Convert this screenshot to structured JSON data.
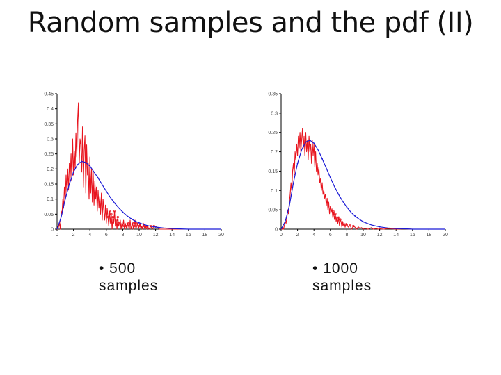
{
  "slide": {
    "title": "Random samples and the pdf (II)"
  },
  "captions": [
    {
      "line1": "• 500",
      "line2": "samples"
    },
    {
      "line1": "• 1000",
      "line2": "samples"
    }
  ],
  "colors": {
    "samples": "#e8141e",
    "pdf": "#1a1ad6",
    "axis": "#000000"
  },
  "chart_data": [
    {
      "type": "line",
      "title": "",
      "xlabel": "",
      "ylabel": "",
      "xlim": [
        0,
        20
      ],
      "ylim": [
        0,
        0.45
      ],
      "grid": false,
      "xticks": [
        "0",
        "2",
        "4",
        "6",
        "8",
        "10",
        "12",
        "14",
        "16",
        "18",
        "20"
      ],
      "yticks": [
        "0",
        "0.05",
        "0.1",
        "0.15",
        "0.2",
        "0.25",
        "0.3",
        "0.35",
        "0.4",
        "0.45"
      ],
      "series": [
        {
          "role": "samples",
          "x": [
            0,
            0.1,
            0.2,
            0.3,
            0.4,
            0.5,
            0.6,
            0.7,
            0.8,
            0.9,
            1,
            1.1,
            1.2,
            1.3,
            1.4,
            1.5,
            1.6,
            1.7,
            1.8,
            1.9,
            2,
            2.1,
            2.2,
            2.3,
            2.4,
            2.5,
            2.6,
            2.7,
            2.8,
            2.9,
            3,
            3.1,
            3.2,
            3.3,
            3.4,
            3.5,
            3.6,
            3.7,
            3.8,
            3.9,
            4,
            4.1,
            4.2,
            4.3,
            4.4,
            4.5,
            4.6,
            4.7,
            4.8,
            4.9,
            5,
            5.1,
            5.2,
            5.3,
            5.4,
            5.5,
            5.6,
            5.7,
            5.8,
            5.9,
            6,
            6.1,
            6.2,
            6.3,
            6.4,
            6.5,
            6.6,
            6.7,
            6.8,
            6.9,
            7,
            7.1,
            7.2,
            7.3,
            7.4,
            7.5,
            7.6,
            7.7,
            7.8,
            7.9,
            8,
            8.1,
            8.2,
            8.3,
            8.4,
            8.5,
            8.6,
            8.7,
            8.8,
            8.9,
            9,
            9.1,
            9.2,
            9.3,
            9.4,
            9.5,
            9.6,
            9.7,
            9.8,
            9.9,
            10,
            10.1,
            10.2,
            10.3,
            10.4,
            10.5,
            10.6,
            10.7,
            10.8,
            10.9,
            11,
            11.2,
            11.4,
            11.6,
            11.8,
            12,
            12.5,
            13,
            14,
            15,
            16,
            17,
            18,
            19,
            20
          ],
          "y": [
            0,
            0,
            0.01,
            0.02,
            0,
            0.06,
            0.05,
            0.1,
            0.07,
            0.14,
            0.1,
            0.18,
            0.12,
            0.2,
            0.13,
            0.22,
            0.17,
            0.25,
            0.16,
            0.3,
            0.18,
            0.26,
            0.2,
            0.32,
            0.24,
            0.36,
            0.42,
            0.22,
            0.3,
            0.28,
            0.19,
            0.34,
            0.14,
            0.26,
            0.31,
            0.12,
            0.28,
            0.18,
            0.22,
            0.1,
            0.24,
            0.12,
            0.2,
            0.09,
            0.19,
            0.08,
            0.16,
            0.1,
            0.14,
            0.06,
            0.13,
            0.07,
            0.11,
            0.05,
            0.12,
            0.03,
            0.1,
            0.06,
            0.03,
            0.08,
            0.02,
            0.07,
            0.04,
            0.01,
            0.06,
            0.02,
            0.05,
            0,
            0.04,
            0.02,
            0.06,
            0.01,
            0.03,
            0,
            0.04,
            0.01,
            0.02,
            0.03,
            0,
            0.02,
            0.01,
            0.03,
            0,
            0.02,
            0.01,
            0,
            0.02,
            0.01,
            0,
            0.03,
            0,
            0.01,
            0.02,
            0,
            0.01,
            0.03,
            0,
            0.01,
            0.02,
            0,
            0.01,
            0.02,
            0,
            0.01,
            0,
            0.02,
            0.01,
            0,
            0.01,
            0,
            0.01,
            0,
            0.01,
            0,
            0.01,
            0.01,
            0,
            0,
            0,
            0,
            0,
            0,
            0,
            0,
            0
          ]
        },
        {
          "role": "pdf",
          "x": [
            0,
            0.5,
            1,
            1.5,
            2,
            2.5,
            3,
            3.5,
            4,
            4.5,
            5,
            5.5,
            6,
            6.5,
            7,
            7.5,
            8,
            8.5,
            9,
            9.5,
            10,
            11,
            12,
            13,
            14,
            15,
            16,
            17,
            18,
            19,
            20
          ],
          "y": [
            0,
            0.04,
            0.1,
            0.15,
            0.19,
            0.215,
            0.225,
            0.222,
            0.21,
            0.19,
            0.17,
            0.148,
            0.126,
            0.105,
            0.087,
            0.071,
            0.057,
            0.045,
            0.035,
            0.027,
            0.021,
            0.012,
            0.007,
            0.004,
            0.002,
            0.001,
            0,
            0,
            0,
            0,
            0
          ]
        }
      ]
    },
    {
      "type": "line",
      "title": "",
      "xlabel": "",
      "ylabel": "",
      "xlim": [
        0,
        20
      ],
      "ylim": [
        0,
        0.35
      ],
      "grid": false,
      "xticks": [
        "0",
        "2",
        "4",
        "6",
        "8",
        "10",
        "12",
        "14",
        "16",
        "18",
        "20"
      ],
      "yticks": [
        "0",
        "0.05",
        "0.1",
        "0.15",
        "0.2",
        "0.25",
        "0.3",
        "0.35"
      ],
      "series": [
        {
          "role": "samples",
          "x": [
            0,
            0.1,
            0.2,
            0.3,
            0.4,
            0.5,
            0.6,
            0.7,
            0.8,
            0.9,
            1,
            1.1,
            1.2,
            1.3,
            1.4,
            1.5,
            1.6,
            1.7,
            1.8,
            1.9,
            2,
            2.1,
            2.2,
            2.3,
            2.4,
            2.5,
            2.6,
            2.7,
            2.8,
            2.9,
            3,
            3.1,
            3.2,
            3.3,
            3.4,
            3.5,
            3.6,
            3.7,
            3.8,
            3.9,
            4,
            4.1,
            4.2,
            4.3,
            4.4,
            4.5,
            4.6,
            4.7,
            4.8,
            4.9,
            5,
            5.1,
            5.2,
            5.3,
            5.4,
            5.5,
            5.6,
            5.7,
            5.8,
            5.9,
            6,
            6.1,
            6.2,
            6.3,
            6.4,
            6.5,
            6.6,
            6.7,
            6.8,
            6.9,
            7,
            7.1,
            7.2,
            7.3,
            7.4,
            7.5,
            7.6,
            7.7,
            7.8,
            7.9,
            8,
            8.2,
            8.4,
            8.6,
            8.8,
            9,
            9.2,
            9.4,
            9.6,
            9.8,
            10,
            10.2,
            10.4,
            10.6,
            10.8,
            11,
            11.2,
            11.4,
            11.6,
            11.8,
            12,
            12.5,
            13,
            14,
            15,
            16,
            17,
            18,
            19,
            20
          ],
          "y": [
            0,
            0,
            0.005,
            0,
            0.01,
            0.02,
            0.015,
            0.03,
            0.05,
            0.04,
            0.07,
            0.09,
            0.12,
            0.1,
            0.15,
            0.17,
            0.14,
            0.2,
            0.18,
            0.22,
            0.19,
            0.24,
            0.21,
            0.25,
            0.2,
            0.23,
            0.26,
            0.21,
            0.24,
            0.19,
            0.25,
            0.2,
            0.23,
            0.18,
            0.24,
            0.2,
            0.22,
            0.17,
            0.23,
            0.19,
            0.22,
            0.16,
            0.2,
            0.15,
            0.17,
            0.14,
            0.16,
            0.12,
            0.13,
            0.1,
            0.12,
            0.09,
            0.1,
            0.08,
            0.09,
            0.06,
            0.08,
            0.05,
            0.07,
            0.04,
            0.06,
            0.045,
            0.05,
            0.03,
            0.045,
            0.025,
            0.04,
            0.02,
            0.03,
            0.015,
            0.03,
            0.01,
            0.025,
            0.02,
            0.005,
            0.02,
            0.01,
            0.015,
            0.005,
            0.015,
            0.01,
            0.005,
            0.01,
            0,
            0.008,
            0.005,
            0,
            0.006,
            0.002,
            0.004,
            0,
            0.003,
            0.001,
            0,
            0.002,
            0.004,
            0,
            0.001,
            0.002,
            0,
            0.001,
            0,
            0.002,
            0,
            0.001,
            0,
            0,
            0,
            0,
            0
          ]
        },
        {
          "role": "pdf",
          "x": [
            0,
            0.5,
            1,
            1.5,
            2,
            2.5,
            3,
            3.5,
            4,
            4.5,
            5,
            5.5,
            6,
            6.5,
            7,
            7.5,
            8,
            8.5,
            9,
            9.5,
            10,
            11,
            12,
            13,
            14,
            15,
            16,
            17,
            18,
            19,
            20
          ],
          "y": [
            0,
            0.02,
            0.06,
            0.12,
            0.17,
            0.205,
            0.225,
            0.23,
            0.222,
            0.205,
            0.182,
            0.158,
            0.133,
            0.11,
            0.09,
            0.072,
            0.057,
            0.044,
            0.034,
            0.026,
            0.019,
            0.011,
            0.006,
            0.003,
            0.0015,
            0.001,
            0,
            0,
            0,
            0,
            0
          ]
        }
      ]
    }
  ]
}
